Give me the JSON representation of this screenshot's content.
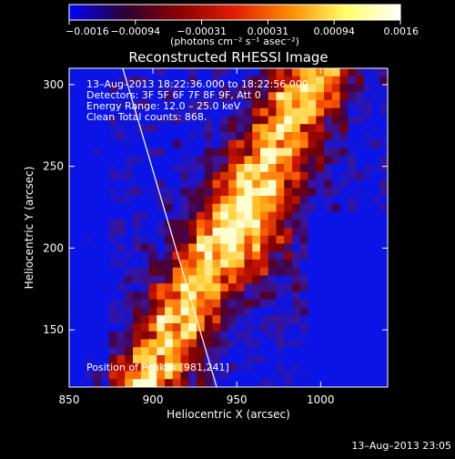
{
  "colorbar": {
    "tick_labels": [
      "−0.0016",
      "−0.00094",
      "−0.00031",
      "0.00031",
      "0.00094",
      "0.0016"
    ],
    "unit_label": "(photons cm⁻² s⁻¹ asec⁻²)",
    "colors": [
      "#0000ff",
      "#2a0033",
      "#8a0000",
      "#e11d00",
      "#ff8a00",
      "#ffff66",
      "#ffffff"
    ]
  },
  "chart_data": {
    "type": "heatmap",
    "title": "Reconstructed RHESSI Image",
    "xlabel": "Heliocentric X (arcsec)",
    "ylabel": "Heliocentric Y (arcsec)",
    "xlim": [
      850,
      1040
    ],
    "ylim": [
      115,
      310
    ],
    "x_ticks": [
      850,
      900,
      950,
      1000
    ],
    "y_ticks": [
      150,
      200,
      250,
      300
    ],
    "colorbar_range": [
      -0.0016,
      0.0016
    ],
    "limb_line": [
      [
        882,
        310
      ],
      [
        938,
        115
      ]
    ],
    "annotations": {
      "time_range": "13–Aug–2013 18:22:36.000 to 18:22:56.000",
      "detectors": "Detectors: 3F 5F 6F 7F 8F 9F, Att 0",
      "energy": "Energy Range: 12.0 – 25.0 keV",
      "clean": "Clean     Total counts: 868.",
      "peak": "Position of Peak = [981,241]"
    },
    "footer_date": "13–Aug–2013 23:05"
  }
}
